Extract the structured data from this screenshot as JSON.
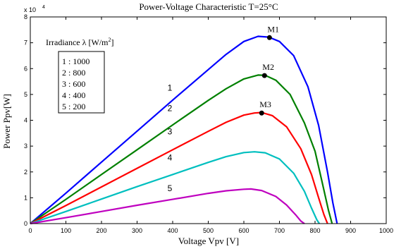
{
  "chart_data": {
    "type": "line",
    "title": "Power-Voltage Characteristic T=25°C",
    "xlabel": "Voltage Vpv [V]",
    "ylabel": "Power Ppv[W]",
    "y_exponent_label": "x 10",
    "y_exponent_power": "4",
    "xlim": [
      0,
      1000
    ],
    "ylim": [
      0,
      8
    ],
    "xticks": [
      0,
      100,
      200,
      300,
      400,
      500,
      600,
      700,
      800,
      900,
      1000
    ],
    "yticks": [
      0,
      1,
      2,
      3,
      4,
      5,
      6,
      7,
      8
    ],
    "grid": false,
    "legend": {
      "title_main": "Irradiance λ [W/m",
      "title_sup": "2",
      "title_end": "]",
      "entries": [
        "1 : 1000",
        "2 : 800",
        "3 : 600",
        "4 : 400",
        "5 : 200"
      ],
      "placement": "top-left"
    },
    "series": [
      {
        "name": "1",
        "color": "#0000ff",
        "x": [
          0,
          100,
          200,
          300,
          400,
          500,
          550,
          600,
          640,
          670,
          700,
          740,
          780,
          810,
          835,
          850,
          862
        ],
        "y": [
          0,
          1.18,
          2.38,
          3.58,
          4.78,
          5.96,
          6.55,
          7.05,
          7.25,
          7.22,
          7.05,
          6.5,
          5.3,
          3.8,
          2.0,
          0.8,
          0
        ]
      },
      {
        "name": "2",
        "color": "#008000",
        "x": [
          0,
          100,
          200,
          300,
          400,
          500,
          550,
          600,
          640,
          660,
          690,
          730,
          770,
          800,
          820,
          838,
          848
        ],
        "y": [
          0,
          0.94,
          1.9,
          2.86,
          3.82,
          4.77,
          5.22,
          5.6,
          5.75,
          5.74,
          5.55,
          5.0,
          3.9,
          2.8,
          1.6,
          0.5,
          0
        ]
      },
      {
        "name": "3",
        "color": "#ff0000",
        "x": [
          0,
          100,
          200,
          300,
          400,
          500,
          550,
          600,
          630,
          650,
          680,
          720,
          760,
          790,
          810,
          825,
          835
        ],
        "y": [
          0,
          0.7,
          1.42,
          2.14,
          2.86,
          3.57,
          3.92,
          4.2,
          4.28,
          4.3,
          4.18,
          3.75,
          2.9,
          1.9,
          1.0,
          0.35,
          0
        ]
      },
      {
        "name": "4",
        "color": "#00bfbf",
        "x": [
          0,
          100,
          200,
          300,
          400,
          500,
          550,
          600,
          630,
          660,
          700,
          740,
          770,
          790,
          805,
          812
        ],
        "y": [
          0,
          0.47,
          0.95,
          1.43,
          1.9,
          2.37,
          2.59,
          2.75,
          2.78,
          2.74,
          2.5,
          1.95,
          1.25,
          0.6,
          0.15,
          0
        ]
      },
      {
        "name": "5",
        "color": "#bf00bf",
        "x": [
          0,
          100,
          200,
          300,
          400,
          500,
          550,
          600,
          620,
          650,
          690,
          720,
          745,
          760,
          770
        ],
        "y": [
          0,
          0.23,
          0.47,
          0.71,
          0.94,
          1.17,
          1.27,
          1.33,
          1.34,
          1.28,
          1.05,
          0.72,
          0.35,
          0.1,
          0
        ]
      }
    ],
    "curve_labels": [
      {
        "text": "1",
        "x": 435,
        "y": 5.15
      },
      {
        "text": "2",
        "x": 435,
        "y": 4.35
      },
      {
        "text": "3",
        "x": 435,
        "y": 3.45
      },
      {
        "text": "4",
        "x": 435,
        "y": 2.45
      },
      {
        "text": "5",
        "x": 435,
        "y": 1.25
      }
    ],
    "markers": [
      {
        "text": "M1",
        "x": 672,
        "y": 7.2
      },
      {
        "text": "M2",
        "x": 658,
        "y": 5.73
      },
      {
        "text": "M3",
        "x": 650,
        "y": 4.28
      }
    ]
  }
}
